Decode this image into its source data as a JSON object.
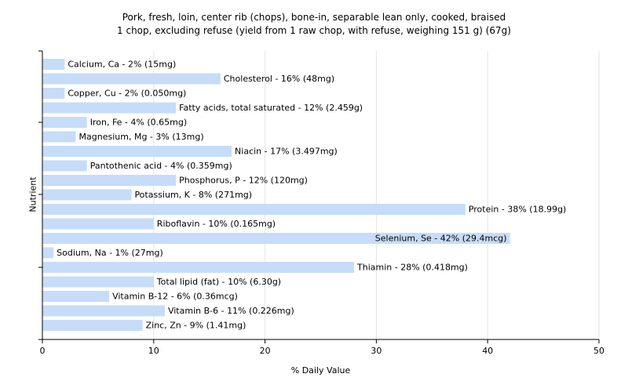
{
  "chart_data": {
    "type": "bar",
    "orientation": "horizontal",
    "title": "Pork, fresh, loin, center rib (chops), bone-in, separable lean only, cooked, braised",
    "subtitle": "1 chop, excluding refuse (yield from 1 raw chop, with refuse, weighing 151 g) (67g)",
    "xlabel": "% Daily Value",
    "ylabel": "Nutrient",
    "xlim": [
      0,
      50
    ],
    "xticks": [
      0,
      10,
      20,
      30,
      40,
      50
    ],
    "grid": true,
    "bar_color": "#c6dcf9",
    "categories": [
      "Calcium, Ca",
      "Cholesterol",
      "Copper, Cu",
      "Fatty acids, total saturated",
      "Iron, Fe",
      "Magnesium, Mg",
      "Niacin",
      "Pantothenic acid",
      "Phosphorus, P",
      "Potassium, K",
      "Protein",
      "Riboflavin",
      "Selenium, Se",
      "Sodium, Na",
      "Thiamin",
      "Total lipid (fat)",
      "Vitamin B-12",
      "Vitamin B-6",
      "Zinc, Zn"
    ],
    "values": [
      2,
      16,
      2,
      12,
      4,
      3,
      17,
      4,
      12,
      8,
      38,
      10,
      42,
      1,
      28,
      10,
      6,
      11,
      9
    ],
    "labels": [
      "Calcium, Ca - 2% (15mg)",
      "Cholesterol - 16% (48mg)",
      "Copper, Cu - 2% (0.050mg)",
      "Fatty acids, total saturated - 12% (2.459g)",
      "Iron, Fe - 4% (0.65mg)",
      "Magnesium, Mg - 3% (13mg)",
      "Niacin - 17% (3.497mg)",
      "Pantothenic acid - 4% (0.359mg)",
      "Phosphorus, P - 12% (120mg)",
      "Potassium, K - 8% (271mg)",
      "Protein - 38% (18.99g)",
      "Riboflavin - 10% (0.165mg)",
      "Selenium, Se - 42% (29.4mcg)",
      "Sodium, Na - 1% (27mg)",
      "Thiamin - 28% (0.418mg)",
      "Total lipid (fat) - 10% (6.30g)",
      "Vitamin B-12 - 6% (0.36mcg)",
      "Vitamin B-6 - 11% (0.226mg)",
      "Zinc, Zn - 9% (1.41mg)"
    ]
  }
}
